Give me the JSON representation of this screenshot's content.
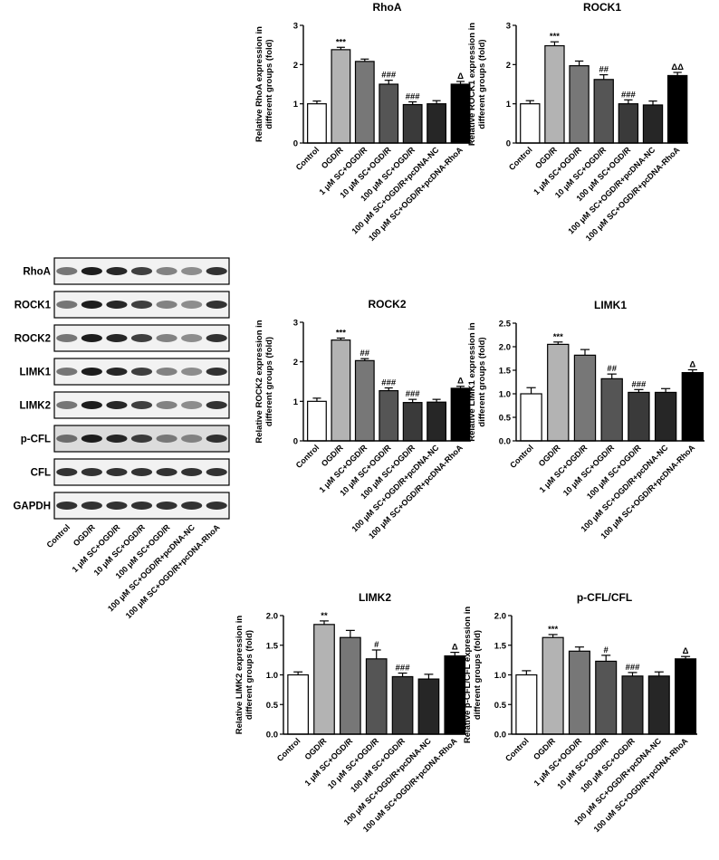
{
  "blot": {
    "rows": [
      "RhoA",
      "ROCK1",
      "ROCK2",
      "LIMK1",
      "LIMK2",
      "p-CFL",
      "CFL",
      "GAPDH"
    ],
    "lanes": [
      "Control",
      "OGD/R",
      "1 μM SC+OGD/R",
      "10 μM SC+OGD/R",
      "100 μM SC+OGD/R",
      "100 μM SC+OGD/R+pcDNA-NC",
      "100 μM SC+OGD/R+pcDNA-RhoA"
    ]
  },
  "chart_data": [
    {
      "type": "bar",
      "title": "RhoA",
      "ylabel": [
        "Relative RhoA expression in",
        "different groups (fold)"
      ],
      "categories": [
        "Control",
        "OGD/R",
        "1 μM SC+OGD/R",
        "10 μM SC+OGD/R",
        "100 μM SC+OGD/R",
        "100 μM SC+OGD/R+pcDNA-NC",
        "100 μM SC+OGD/R+pcDNA-RhoA"
      ],
      "values": [
        1.0,
        2.38,
        2.08,
        1.5,
        0.98,
        1.0,
        1.5
      ],
      "errors": [
        0.07,
        0.06,
        0.06,
        0.1,
        0.07,
        0.08,
        0.07
      ],
      "annotations": [
        null,
        "***",
        null,
        "###",
        "###",
        null,
        "Δ"
      ],
      "colors": [
        "#ffffff",
        "#b3b3b3",
        "#777777",
        "#555555",
        "#3a3a3a",
        "#262626",
        "#000000"
      ],
      "ylim": [
        0,
        3
      ],
      "yticks": [
        0,
        1,
        2,
        3
      ]
    },
    {
      "type": "bar",
      "title": "ROCK1",
      "ylabel": [
        "Relative ROCK1 expression in",
        "different groups (fold)"
      ],
      "categories": [
        "Control",
        "OGD/R",
        "1 μM SC+OGD/R",
        "10 μM SC+OGD/R",
        "100 μM SC+OGD/R",
        "100 μM SC+OGD/R+pcDNA-NC",
        "100 μM SC+OGD/R+pcDNA-RhoA"
      ],
      "values": [
        1.0,
        2.48,
        1.97,
        1.62,
        1.0,
        0.97,
        1.72
      ],
      "errors": [
        0.08,
        0.1,
        0.12,
        0.12,
        0.1,
        0.1,
        0.08
      ],
      "annotations": [
        null,
        "***",
        null,
        "##",
        "###",
        null,
        "ΔΔ"
      ],
      "colors": [
        "#ffffff",
        "#b3b3b3",
        "#777777",
        "#555555",
        "#3a3a3a",
        "#262626",
        "#000000"
      ],
      "ylim": [
        0,
        3
      ],
      "yticks": [
        0,
        1,
        2,
        3
      ]
    },
    {
      "type": "bar",
      "title": "ROCK2",
      "ylabel": [
        "Relative ROCK2 expression in",
        "different groups (fold)"
      ],
      "categories": [
        "Control",
        "OGD/R",
        "1 μM SC+OGD/R",
        "10 μM SC+OGD/R",
        "100 μM SC+OGD/R",
        "100 μM SC+OGD/R+pcDNA-NC",
        "100 μM SC+OGD/R+pcDNA-RhoA"
      ],
      "values": [
        1.0,
        2.55,
        2.03,
        1.27,
        0.97,
        0.98,
        1.33
      ],
      "errors": [
        0.08,
        0.05,
        0.05,
        0.07,
        0.08,
        0.07,
        0.05
      ],
      "annotations": [
        null,
        "***",
        "##",
        "###",
        "###",
        null,
        "Δ"
      ],
      "colors": [
        "#ffffff",
        "#b3b3b3",
        "#777777",
        "#555555",
        "#3a3a3a",
        "#262626",
        "#000000"
      ],
      "ylim": [
        0,
        3
      ],
      "yticks": [
        0,
        1,
        2,
        3
      ]
    },
    {
      "type": "bar",
      "title": "LIMK1",
      "ylabel": [
        "Relative LIMK1 expression in",
        "different groups (fold)"
      ],
      "categories": [
        "Control",
        "OGD/R",
        "1 μM SC+OGD/R",
        "10 μM SC+OGD/R",
        "100 μM SC+OGD/R",
        "100 μM SC+OGD/R+pcDNA-NC",
        "100 μM SC+OGD/R+pcDNA-RhoA"
      ],
      "values": [
        1.0,
        2.05,
        1.82,
        1.32,
        1.03,
        1.03,
        1.45
      ],
      "errors": [
        0.13,
        0.05,
        0.12,
        0.1,
        0.06,
        0.08,
        0.06
      ],
      "annotations": [
        null,
        "***",
        null,
        "##",
        "###",
        null,
        "Δ"
      ],
      "colors": [
        "#ffffff",
        "#b3b3b3",
        "#777777",
        "#555555",
        "#3a3a3a",
        "#262626",
        "#000000"
      ],
      "ylim": [
        0,
        2.5
      ],
      "yticks": [
        {
          "value": 0,
          "label": "0.0"
        },
        0.5,
        {
          "value": 1,
          "label": "1.0"
        },
        1.5,
        {
          "value": 2,
          "label": "2.0"
        },
        2.5
      ]
    },
    {
      "type": "bar",
      "title": "LIMK2",
      "ylabel": [
        "Relative LIMK2 expression in",
        "different groups (fold)"
      ],
      "categories": [
        "Control",
        "OGD/R",
        "1 μM SC+OGD/R",
        "10 μM SC+OGD/R",
        "100 μM SC+OGD/R",
        "100 μM SC+OGD/R+pcDNA-NC",
        "100 uM SC+OGD/R+pcDNA-RhoA"
      ],
      "values": [
        1.0,
        1.85,
        1.63,
        1.27,
        0.97,
        0.93,
        1.32
      ],
      "errors": [
        0.05,
        0.06,
        0.12,
        0.15,
        0.06,
        0.08,
        0.06
      ],
      "annotations": [
        null,
        "**",
        null,
        "#",
        "###",
        null,
        "Δ"
      ],
      "colors": [
        "#ffffff",
        "#b3b3b3",
        "#777777",
        "#555555",
        "#3a3a3a",
        "#262626",
        "#000000"
      ],
      "ylim": [
        0,
        2
      ],
      "yticks": [
        {
          "value": 0,
          "label": "0.0"
        },
        0.5,
        {
          "value": 1,
          "label": "1.0"
        },
        1.5,
        {
          "value": 2,
          "label": "2.0"
        }
      ]
    },
    {
      "type": "bar",
      "title": "p-CFL/CFL",
      "ylabel": [
        "Relative p-CFL/CFL expression in",
        "different groups (fold)"
      ],
      "categories": [
        "Control",
        "OGD/R",
        "1 μM SC+OGD/R",
        "10 μM SC+OGD/R",
        "100 μM SC+OGD/R",
        "100 μM SC+OGD/R+pcDNA-NC",
        "100 uM SC+OGD/R+pcDNA-RhoA"
      ],
      "values": [
        1.0,
        1.63,
        1.4,
        1.23,
        0.98,
        0.98,
        1.27
      ],
      "errors": [
        0.07,
        0.05,
        0.07,
        0.1,
        0.06,
        0.07,
        0.04
      ],
      "annotations": [
        null,
        "***",
        null,
        "#",
        "###",
        null,
        "Δ"
      ],
      "colors": [
        "#ffffff",
        "#b3b3b3",
        "#777777",
        "#555555",
        "#3a3a3a",
        "#262626",
        "#000000"
      ],
      "ylim": [
        0,
        2
      ],
      "yticks": [
        {
          "value": 0,
          "label": "0.0"
        },
        0.5,
        {
          "value": 1,
          "label": "1.0"
        },
        1.5,
        {
          "value": 2,
          "label": "2.0"
        }
      ]
    }
  ]
}
